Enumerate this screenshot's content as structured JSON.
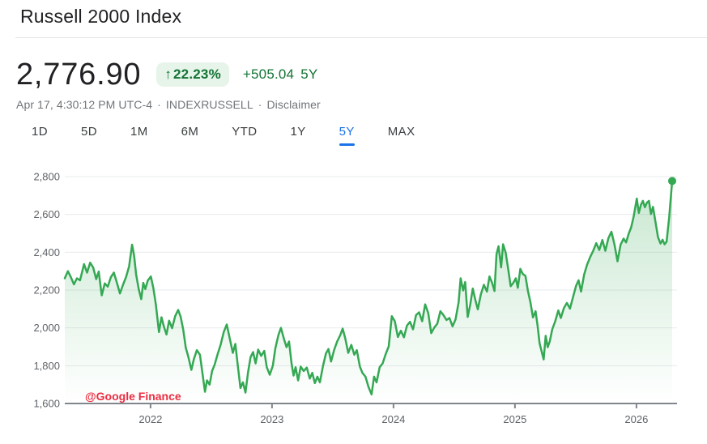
{
  "header": {
    "title": "Russell 2000 Index"
  },
  "quote": {
    "price": "2,776.90",
    "change_arrow": "↑",
    "change_percent": "22.23%",
    "change_absolute": "+505.04",
    "change_period": "5Y",
    "timestamp": "Apr 17, 4:30:12 PM UTC-4",
    "separator": "·",
    "exchange": "INDEXRUSSELL",
    "disclaimer_label": "Disclaimer"
  },
  "range_tabs": {
    "options": [
      "1D",
      "5D",
      "1M",
      "6M",
      "YTD",
      "1Y",
      "5Y",
      "MAX"
    ],
    "selected": "5Y"
  },
  "watermark": "@Google Finance",
  "colors": {
    "line": "#34a853",
    "area_fill": "#34a853",
    "badge_bg": "#e6f4ea",
    "green_text": "#137333",
    "tab_active_blue": "#1a73e8",
    "watermark_red": "#ec2d41",
    "gridline": "#e9ebee",
    "axis": "#80868b",
    "tick_label": "#5f6368",
    "meta_text": "#70757a",
    "title_text": "#202124"
  },
  "chart_data": {
    "type": "line",
    "title": "Russell 2000 Index — 5Y",
    "x_unit": "months since 2021-04-17",
    "x_range": [
      0,
      60
    ],
    "ylim": [
      1600,
      2800
    ],
    "grid": "horizontal",
    "legend": "none",
    "x_axis": {
      "labels": [
        "2022",
        "2023",
        "2024",
        "2025",
        "2026"
      ],
      "positions_months": [
        8.47,
        20.47,
        32.47,
        44.47,
        56.47
      ]
    },
    "y_axis": {
      "ticks": [
        1600,
        1800,
        2000,
        2200,
        2400,
        2600,
        2800
      ],
      "labels": [
        "1,600",
        "1,800",
        "2,000",
        "2,200",
        "2,400",
        "2,600",
        "2,800"
      ]
    },
    "end_point": {
      "m": 60,
      "value": 2776.9,
      "marker": "dot"
    },
    "series": [
      {
        "name": "Russell 2000 Index",
        "points": [
          [
            0,
            2262
          ],
          [
            0.3,
            2300
          ],
          [
            0.6,
            2268
          ],
          [
            0.9,
            2230
          ],
          [
            1.2,
            2262
          ],
          [
            1.5,
            2252
          ],
          [
            1.9,
            2337
          ],
          [
            2.2,
            2292
          ],
          [
            2.5,
            2345
          ],
          [
            2.8,
            2320
          ],
          [
            3.1,
            2258
          ],
          [
            3.35,
            2298
          ],
          [
            3.65,
            2172
          ],
          [
            3.95,
            2235
          ],
          [
            4.25,
            2218
          ],
          [
            4.55,
            2268
          ],
          [
            4.85,
            2292
          ],
          [
            5.15,
            2238
          ],
          [
            5.45,
            2182
          ],
          [
            5.75,
            2228
          ],
          [
            6.05,
            2268
          ],
          [
            6.35,
            2325
          ],
          [
            6.65,
            2440
          ],
          [
            6.85,
            2382
          ],
          [
            7.05,
            2282
          ],
          [
            7.3,
            2205
          ],
          [
            7.55,
            2152
          ],
          [
            7.75,
            2238
          ],
          [
            7.95,
            2205
          ],
          [
            8.2,
            2250
          ],
          [
            8.5,
            2272
          ],
          [
            8.75,
            2210
          ],
          [
            9.0,
            2122
          ],
          [
            9.3,
            1978
          ],
          [
            9.55,
            2056
          ],
          [
            9.8,
            2005
          ],
          [
            10.05,
            1965
          ],
          [
            10.3,
            2038
          ],
          [
            10.6,
            1998
          ],
          [
            10.9,
            2062
          ],
          [
            11.2,
            2095
          ],
          [
            11.45,
            2058
          ],
          [
            11.7,
            1992
          ],
          [
            11.95,
            1895
          ],
          [
            12.2,
            1848
          ],
          [
            12.5,
            1778
          ],
          [
            12.75,
            1835
          ],
          [
            13.05,
            1882
          ],
          [
            13.35,
            1858
          ],
          [
            13.6,
            1760
          ],
          [
            13.85,
            1662
          ],
          [
            14.05,
            1722
          ],
          [
            14.3,
            1700
          ],
          [
            14.55,
            1772
          ],
          [
            14.8,
            1805
          ],
          [
            15.1,
            1862
          ],
          [
            15.4,
            1912
          ],
          [
            15.7,
            1978
          ],
          [
            16.0,
            2018
          ],
          [
            16.3,
            1942
          ],
          [
            16.6,
            1868
          ],
          [
            16.85,
            1915
          ],
          [
            17.1,
            1795
          ],
          [
            17.35,
            1682
          ],
          [
            17.6,
            1712
          ],
          [
            17.85,
            1658
          ],
          [
            18.1,
            1765
          ],
          [
            18.35,
            1845
          ],
          [
            18.6,
            1872
          ],
          [
            18.85,
            1812
          ],
          [
            19.1,
            1885
          ],
          [
            19.4,
            1852
          ],
          [
            19.7,
            1878
          ],
          [
            19.95,
            1792
          ],
          [
            20.25,
            1752
          ],
          [
            20.55,
            1800
          ],
          [
            20.8,
            1892
          ],
          [
            21.1,
            1962
          ],
          [
            21.35,
            2000
          ],
          [
            21.65,
            1942
          ],
          [
            21.9,
            1898
          ],
          [
            22.15,
            1928
          ],
          [
            22.4,
            1812
          ],
          [
            22.6,
            1748
          ],
          [
            22.8,
            1792
          ],
          [
            23.05,
            1722
          ],
          [
            23.3,
            1795
          ],
          [
            23.6,
            1772
          ],
          [
            23.9,
            1790
          ],
          [
            24.2,
            1732
          ],
          [
            24.45,
            1762
          ],
          [
            24.7,
            1708
          ],
          [
            24.95,
            1742
          ],
          [
            25.2,
            1712
          ],
          [
            25.5,
            1798
          ],
          [
            25.8,
            1865
          ],
          [
            26.05,
            1888
          ],
          [
            26.3,
            1822
          ],
          [
            26.6,
            1882
          ],
          [
            26.9,
            1928
          ],
          [
            27.2,
            1960
          ],
          [
            27.45,
            1996
          ],
          [
            27.7,
            1945
          ],
          [
            28.0,
            1868
          ],
          [
            28.3,
            1910
          ],
          [
            28.6,
            1858
          ],
          [
            28.85,
            1882
          ],
          [
            29.15,
            1795
          ],
          [
            29.4,
            1762
          ],
          [
            29.7,
            1742
          ],
          [
            30.0,
            1688
          ],
          [
            30.3,
            1648
          ],
          [
            30.55,
            1742
          ],
          [
            30.8,
            1712
          ],
          [
            31.1,
            1792
          ],
          [
            31.4,
            1812
          ],
          [
            31.7,
            1862
          ],
          [
            32.0,
            1902
          ],
          [
            32.3,
            2062
          ],
          [
            32.6,
            2035
          ],
          [
            32.9,
            1952
          ],
          [
            33.2,
            1985
          ],
          [
            33.5,
            1950
          ],
          [
            33.8,
            2012
          ],
          [
            34.1,
            2032
          ],
          [
            34.4,
            1992
          ],
          [
            34.7,
            2068
          ],
          [
            35.0,
            2082
          ],
          [
            35.3,
            2035
          ],
          [
            35.6,
            2124
          ],
          [
            35.9,
            2078
          ],
          [
            36.2,
            1972
          ],
          [
            36.5,
            2002
          ],
          [
            36.8,
            2022
          ],
          [
            37.1,
            2088
          ],
          [
            37.4,
            2068
          ],
          [
            37.7,
            2042
          ],
          [
            38.0,
            2052
          ],
          [
            38.3,
            2008
          ],
          [
            38.6,
            2045
          ],
          [
            38.9,
            2135
          ],
          [
            39.1,
            2262
          ],
          [
            39.35,
            2198
          ],
          [
            39.55,
            2242
          ],
          [
            39.8,
            2058
          ],
          [
            40.05,
            2122
          ],
          [
            40.3,
            2208
          ],
          [
            40.55,
            2148
          ],
          [
            40.8,
            2098
          ],
          [
            41.1,
            2178
          ],
          [
            41.4,
            2228
          ],
          [
            41.7,
            2192
          ],
          [
            41.95,
            2272
          ],
          [
            42.2,
            2240
          ],
          [
            42.45,
            2195
          ],
          [
            42.65,
            2390
          ],
          [
            42.85,
            2432
          ],
          [
            43.1,
            2320
          ],
          [
            43.3,
            2442
          ],
          [
            43.55,
            2398
          ],
          [
            43.8,
            2312
          ],
          [
            44.05,
            2220
          ],
          [
            44.3,
            2238
          ],
          [
            44.55,
            2262
          ],
          [
            44.75,
            2212
          ],
          [
            45.0,
            2312
          ],
          [
            45.25,
            2285
          ],
          [
            45.5,
            2275
          ],
          [
            45.75,
            2195
          ],
          [
            46.0,
            2135
          ],
          [
            46.25,
            2055
          ],
          [
            46.5,
            2088
          ],
          [
            46.7,
            2012
          ],
          [
            46.9,
            1918
          ],
          [
            47.3,
            1833
          ],
          [
            47.5,
            1958
          ],
          [
            47.7,
            1898
          ],
          [
            47.9,
            1928
          ],
          [
            48.15,
            1992
          ],
          [
            48.45,
            2035
          ],
          [
            48.75,
            2092
          ],
          [
            49.0,
            2052
          ],
          [
            49.3,
            2105
          ],
          [
            49.6,
            2132
          ],
          [
            49.9,
            2102
          ],
          [
            50.2,
            2162
          ],
          [
            50.5,
            2222
          ],
          [
            50.75,
            2252
          ],
          [
            51.0,
            2192
          ],
          [
            51.3,
            2282
          ],
          [
            51.6,
            2335
          ],
          [
            51.9,
            2375
          ],
          [
            52.2,
            2408
          ],
          [
            52.5,
            2448
          ],
          [
            52.8,
            2412
          ],
          [
            53.1,
            2465
          ],
          [
            53.4,
            2408
          ],
          [
            53.7,
            2475
          ],
          [
            54.0,
            2508
          ],
          [
            54.3,
            2442
          ],
          [
            54.6,
            2352
          ],
          [
            54.9,
            2440
          ],
          [
            55.2,
            2472
          ],
          [
            55.45,
            2452
          ],
          [
            55.7,
            2498
          ],
          [
            55.95,
            2532
          ],
          [
            56.2,
            2590
          ],
          [
            56.5,
            2684
          ],
          [
            56.7,
            2608
          ],
          [
            56.9,
            2650
          ],
          [
            57.1,
            2672
          ],
          [
            57.3,
            2638
          ],
          [
            57.5,
            2662
          ],
          [
            57.7,
            2672
          ],
          [
            57.9,
            2602
          ],
          [
            58.1,
            2640
          ],
          [
            58.35,
            2560
          ],
          [
            58.6,
            2480
          ],
          [
            58.85,
            2446
          ],
          [
            59.05,
            2466
          ],
          [
            59.25,
            2442
          ],
          [
            59.45,
            2456
          ],
          [
            59.7,
            2585
          ],
          [
            60.0,
            2776.9
          ]
        ]
      }
    ]
  }
}
